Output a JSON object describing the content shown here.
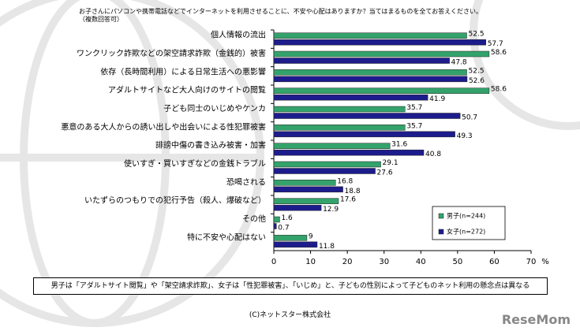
{
  "chart_data": {
    "type": "hbar",
    "title": "お子さんにパソコンや携帯電話などでインターネットを利用させることに、不安や心配はありますか？当てはまるものを全てお答えください。（複数回答可）",
    "categories": [
      "個人情報の流出",
      "ワンクリック詐欺などの架空請求詐欺（金銭的）被害",
      "依存（長時間利用）による日常生活への悪影響",
      "アダルトサイトなど大人向けのサイトの閲覧",
      "子ども同士のいじめやケンカ",
      "悪意のある大人からの誘い出しや出会いによる性犯罪被害",
      "誹謗中傷の書き込み被害・加害",
      "使いすぎ・買いすぎなどの金銭トラブル",
      "恐喝される",
      "いたずらのつもりでの犯行予告（殺人、爆破など）",
      "その他",
      "特に不安や心配はない"
    ],
    "series": [
      {
        "name": "男子(n=244)",
        "color": "#33a36b",
        "values": [
          52.5,
          58.6,
          52.5,
          58.6,
          35.7,
          35.7,
          31.6,
          29.1,
          16.8,
          17.6,
          1.6,
          9
        ]
      },
      {
        "name": "女子(n=272)",
        "color": "#1c1c8c",
        "values": [
          57.7,
          47.8,
          52.6,
          41.9,
          50.7,
          49.3,
          40.8,
          27.6,
          18.8,
          12.9,
          0.7,
          11.8
        ]
      }
    ],
    "xlim": [
      0,
      70
    ],
    "xticks": [
      0,
      10,
      20,
      30,
      40,
      50,
      60,
      70
    ],
    "x_unit": "%",
    "legend": "lower right",
    "note": "男子は「アダルトサイト閲覧」や「架空請求詐欺」、女子は「性犯罪被害」、「いじめ」と、子どもの性別によって子どものネット利用の懸念点は異なる",
    "footer": "(C)ネットスター株式会社",
    "watermark": "ReseMom"
  }
}
